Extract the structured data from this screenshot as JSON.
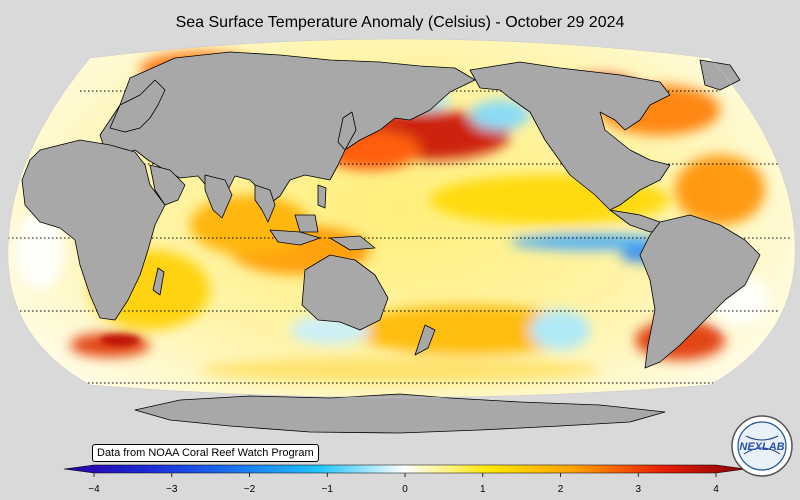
{
  "title": "Sea Surface Temperature Anomaly (Celsius) - October 29 2024",
  "credit": "Data from NOAA Coral Reef Watch Program",
  "logo_text": "NEXLAB",
  "colorbar": {
    "min": -4,
    "max": 4,
    "ticks": [
      "−4",
      "−3",
      "−2",
      "−1",
      "0",
      "1",
      "2",
      "3",
      "4"
    ],
    "tick_values": [
      -4,
      -3,
      -2,
      -1,
      0,
      1,
      2,
      3,
      4
    ],
    "colors": [
      "#2a00a0",
      "#1c2bd8",
      "#1a73f0",
      "#22c5ff",
      "#ffffff",
      "#ffe600",
      "#ffa000",
      "#e82000",
      "#8a0000"
    ]
  },
  "colors": {
    "background": "#d9d9d9",
    "land": "#a8a8a8",
    "ocean_warm": "#ffe680",
    "ocean_hot": "#d81800"
  }
}
